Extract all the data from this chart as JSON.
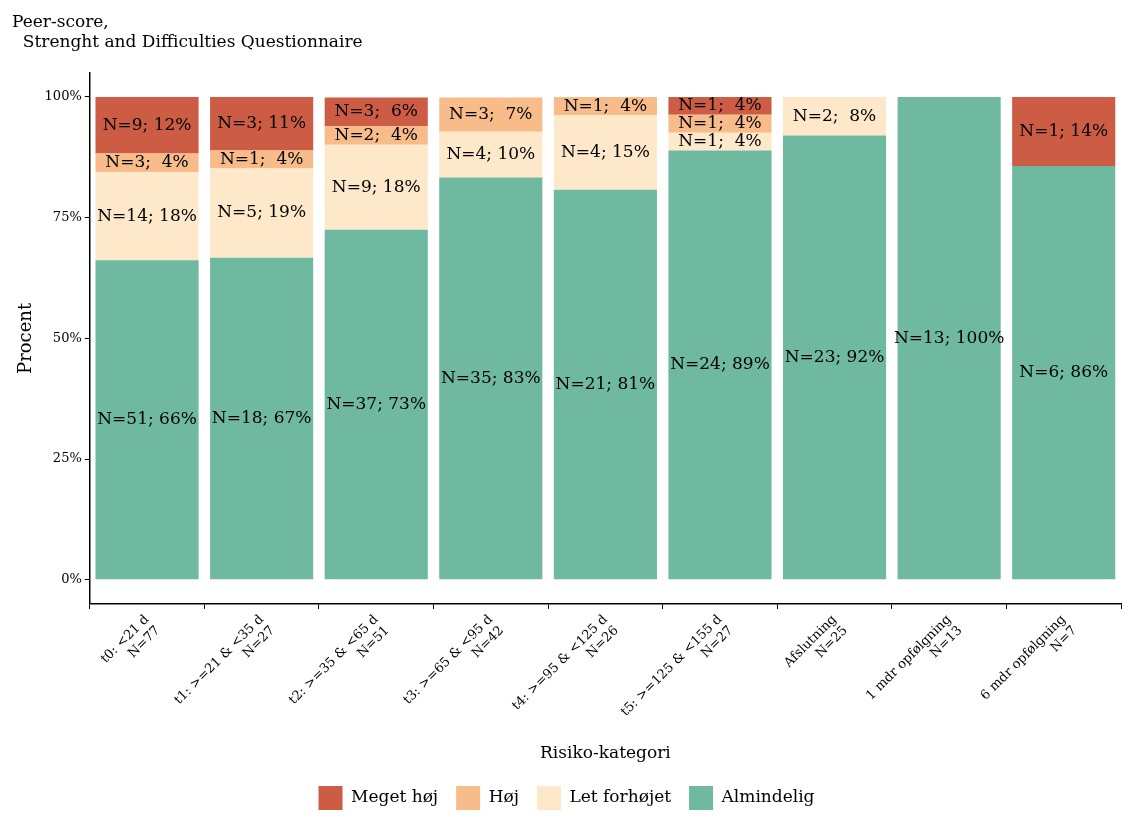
{
  "chart_data": {
    "type": "bar",
    "stacked": true,
    "title": [
      "Peer-score,",
      "  Strenght and Difficulties Questionnaire"
    ],
    "xlabel": "Risiko-kategori",
    "ylabel": "Procent",
    "categories": [
      "t0: <21 d\nN=77",
      "t1: >=21 & <35 d\nN=27",
      "t2: >=35 & <65 d\nN=51",
      "t3: >=65 & <95 d\nN=42",
      "t4: >=95 & <125 d\nN=26",
      "t5: >=125 & <155 d\nN=27",
      "Afslutning\nN=25",
      "1 mdr opfølgning\nN=13",
      "6 mdr opfølgning\nN=7"
    ],
    "series": [
      {
        "name": "Almindelig",
        "color": "#6fb9a1",
        "values": [
          66.2,
          66.7,
          72.5,
          83.3,
          80.8,
          88.9,
          92,
          100,
          85.7
        ],
        "value_labels": [
          "N=51; 66%",
          "N=18; 67%",
          "N=37; 73%",
          "N=35; 83%",
          "N=21; 81%",
          "N=24; 89%",
          "N=23; 92%",
          "N=13; 100%",
          "N=6; 86%"
        ]
      },
      {
        "name": "Let forhøjet",
        "color": "#fde8c9",
        "values": [
          18.2,
          18.5,
          17.6,
          9.5,
          15.4,
          3.7,
          8,
          null,
          null
        ],
        "value_labels": [
          "N=14; 18%",
          "N=5; 19%",
          "N=9; 18%",
          "N=4; 10%",
          "N=4; 15%",
          "N=1;  4%",
          "N=2;  8%",
          null,
          null
        ]
      },
      {
        "name": "Høj",
        "color": "#f7bc8a",
        "values": [
          3.9,
          3.7,
          3.9,
          7.1,
          3.8,
          3.7,
          null,
          null,
          null
        ],
        "value_labels": [
          "N=3;  4%",
          "N=1;  4%",
          "N=2;  4%",
          "N=3;  7%",
          "N=1;  4%",
          "N=1;  4%",
          null,
          null,
          null
        ]
      },
      {
        "name": "Meget høj",
        "color": "#cd5c45",
        "values": [
          11.7,
          11.1,
          5.9,
          null,
          null,
          3.7,
          null,
          null,
          14.3
        ],
        "value_labels": [
          "N=9; 12%",
          "N=3; 11%",
          "N=3;  6%",
          null,
          null,
          "N=1;  4%",
          null,
          null,
          "N=1; 14%"
        ]
      }
    ],
    "ylim": [
      -5,
      105
    ],
    "yticks": [
      {
        "value": 0,
        "label": "0%"
      },
      {
        "value": 25,
        "label": "25%"
      },
      {
        "value": 50,
        "label": "50%"
      },
      {
        "value": 75,
        "label": "75%"
      },
      {
        "value": 100,
        "label": "100%"
      }
    ],
    "grid": false,
    "legend": "bottom"
  }
}
